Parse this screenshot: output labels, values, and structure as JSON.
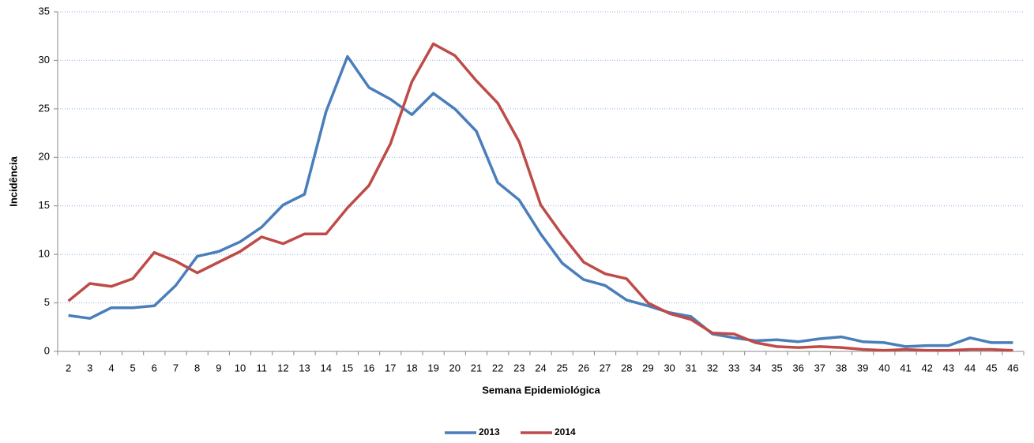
{
  "chart_data": {
    "type": "line",
    "ylabel": "Incidência",
    "xlabel": "Semana Epidemiológica",
    "categories": [
      "2",
      "3",
      "4",
      "5",
      "6",
      "7",
      "8",
      "9",
      "10",
      "11",
      "12",
      "13",
      "14",
      "15",
      "16",
      "17",
      "18",
      "19",
      "20",
      "21",
      "22",
      "23",
      "24",
      "25",
      "26",
      "27",
      "28",
      "29",
      "30",
      "31",
      "32",
      "33",
      "34",
      "35",
      "36",
      "37",
      "38",
      "39",
      "40",
      "41",
      "42",
      "43",
      "44",
      "45",
      "46"
    ],
    "series": [
      {
        "name": "2013",
        "color": "#4a7ebb",
        "values": [
          3.7,
          3.4,
          4.5,
          4.5,
          4.7,
          6.8,
          9.8,
          10.3,
          11.3,
          12.8,
          15.1,
          16.2,
          24.7,
          30.4,
          27.2,
          26.0,
          24.4,
          26.6,
          25.0,
          22.7,
          17.4,
          15.6,
          12.1,
          9.1,
          7.4,
          6.8,
          5.3,
          4.7,
          4.0,
          3.6,
          1.8,
          1.4,
          1.1,
          1.2,
          1.0,
          1.3,
          1.5,
          1.0,
          0.9,
          0.5,
          0.6,
          0.6,
          1.4,
          0.9,
          0.9
        ]
      },
      {
        "name": "2014",
        "color": "#be4b48",
        "values": [
          5.2,
          7.0,
          6.7,
          7.5,
          10.2,
          9.3,
          8.1,
          9.2,
          10.3,
          11.8,
          11.1,
          12.1,
          12.1,
          14.8,
          17.1,
          21.4,
          27.8,
          31.7,
          30.5,
          27.9,
          25.6,
          21.6,
          15.1,
          12.0,
          9.2,
          8.0,
          7.5,
          5.0,
          3.9,
          3.3,
          1.9,
          1.8,
          0.9,
          0.5,
          0.4,
          0.5,
          0.4,
          0.2,
          0.1,
          0.2,
          0.1,
          0.1,
          0.2,
          0.2,
          0.1
        ]
      }
    ],
    "ylim": [
      0,
      35
    ],
    "yticks": [
      0,
      5,
      10,
      15,
      20,
      25,
      30,
      35
    ],
    "grid": true,
    "legend": "bottom"
  }
}
